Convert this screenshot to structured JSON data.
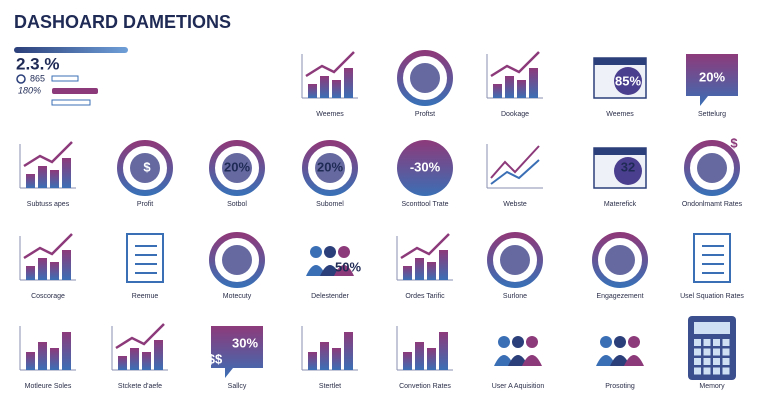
{
  "header": {
    "title": "DASHOARD DAMETIONS",
    "metric": "2.3.%",
    "stats": [
      "865",
      "180%"
    ]
  },
  "rows": [
    [
      {
        "label": "Weemes",
        "texts": []
      },
      {
        "label": "Proftst",
        "texts": []
      },
      {
        "label": "Dookage",
        "texts": []
      },
      {
        "label": "Weemes",
        "texts": [
          "85%"
        ]
      },
      {
        "label": "Settelurg",
        "texts": [
          "20%"
        ]
      }
    ],
    [
      {
        "label": "Subtuss apes",
        "texts": []
      },
      {
        "label": "Profit",
        "texts": [
          "$"
        ]
      },
      {
        "label": "Sotbol",
        "texts": [
          "20%"
        ]
      },
      {
        "label": "Subomel",
        "texts": [
          "20%"
        ]
      },
      {
        "label": "Sconttool Trate",
        "texts": [
          "-30%"
        ]
      },
      {
        "label": "Webste",
        "texts": []
      },
      {
        "label": "Materefick",
        "texts": [
          "32"
        ]
      },
      {
        "label": "Ondonlmamt Rates",
        "texts": [
          "$"
        ]
      }
    ],
    [
      {
        "label": "Coscorage",
        "texts": []
      },
      {
        "label": "Reemue",
        "texts": []
      },
      {
        "label": "Motecuty",
        "texts": []
      },
      {
        "label": "Delestender",
        "texts": [
          "50%"
        ]
      },
      {
        "label": "Ordes Tarific",
        "texts": []
      },
      {
        "label": "Surlone",
        "texts": []
      },
      {
        "label": "Engagezement",
        "texts": []
      },
      {
        "label": "Usel Squation Rates",
        "texts": []
      }
    ],
    [
      {
        "label": "Motleure Soles",
        "texts": []
      },
      {
        "label": "Stckete d'aefe",
        "texts": []
      },
      {
        "label": "Sallcy",
        "texts": [
          "$$",
          "30%"
        ]
      },
      {
        "label": "Stertlet",
        "texts": []
      },
      {
        "label": "Convetion Rates",
        "texts": []
      },
      {
        "label": "User A Aquisition",
        "texts": []
      },
      {
        "label": "Prosoting",
        "texts": []
      },
      {
        "label": "Memory",
        "texts": []
      }
    ]
  ]
}
